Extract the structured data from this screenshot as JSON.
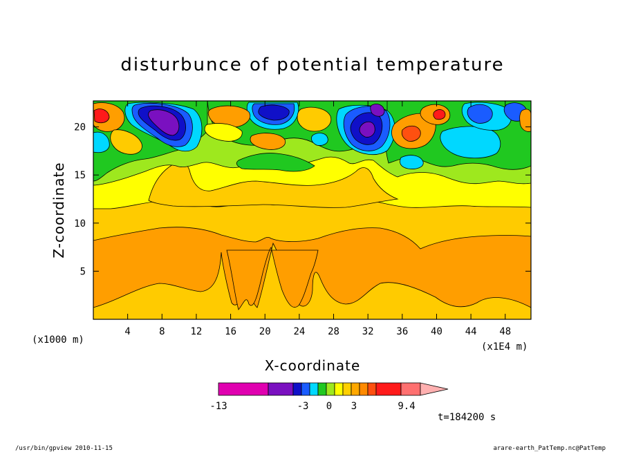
{
  "title": "disturbunce of potential temperature",
  "footer": {
    "left": "/usr/bin/gpview  2010-11-15",
    "right": "arare-earth_PatTemp.nc@PatTemp"
  },
  "time_label": "t=184200 s",
  "chart_data": {
    "type": "heatmap",
    "title": "disturbunce of potential temperature",
    "xlabel": "X-coordinate",
    "ylabel": "Z-coordinate",
    "x_unit_left": "(x1000 m)",
    "x_unit_right": "(x1E4 m)",
    "xlim": [
      0,
      51
    ],
    "ylim": [
      0,
      22.7
    ],
    "x_ticks": [
      4,
      8,
      12,
      16,
      20,
      24,
      28,
      32,
      36,
      40,
      44,
      48
    ],
    "y_ticks": [
      5,
      10,
      15,
      20
    ],
    "colorbar": {
      "labels": [
        "-13",
        "-3",
        "0",
        "3",
        "9.4"
      ],
      "colors": [
        "#e000b0",
        "#7a10c0",
        "#1010c8",
        "#1a5cff",
        "#00d8ff",
        "#20c820",
        "#9ee81e",
        "#ffff00",
        "#ffd000",
        "#ffa800",
        "#ff8a00",
        "#ff5010",
        "#ff1a1a",
        "#ff7070",
        "#ffb0b0"
      ]
    },
    "regions": [
      {
        "value": "orange-lower",
        "color": "#ff9e00"
      },
      {
        "value": "yellow-orange-mid",
        "color": "#ffcb00"
      },
      {
        "value": "yellow",
        "color": "#ffff00"
      },
      {
        "value": "light-green",
        "color": "#9ee81e"
      },
      {
        "value": "green",
        "color": "#20c820"
      },
      {
        "value": "cyan",
        "color": "#00d8ff"
      },
      {
        "value": "blue",
        "color": "#1a5cff"
      },
      {
        "value": "dark-blue",
        "color": "#1010c8"
      },
      {
        "value": "purple",
        "color": "#7a10c0"
      },
      {
        "value": "red",
        "color": "#ff1a1a"
      }
    ]
  }
}
